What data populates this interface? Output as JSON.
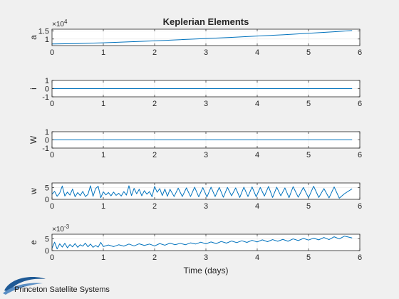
{
  "window": {
    "footer_text": "Princeton Satellite Systems"
  },
  "colors": {
    "background": "#f0f0f0",
    "axes_bg": "#ffffff",
    "line": "#0072bd",
    "grid": "#e6e6e6",
    "text": "#262626"
  },
  "chart_data": [
    {
      "type": "line",
      "title": "Keplerian Elements",
      "ylabel": "a",
      "xlabel": "",
      "exponent": "4",
      "xlim": [
        0,
        6
      ],
      "ylim": [
        0.6,
        1.6
      ],
      "xticks": [
        "0",
        "1",
        "2",
        "3",
        "4",
        "5",
        "6"
      ],
      "yticks": [
        {
          "value": 1,
          "label": "1"
        },
        {
          "value": 1.5,
          "label": "1.5"
        }
      ],
      "x": [
        0,
        0.5,
        1,
        1.5,
        2,
        2.5,
        3,
        3.5,
        4,
        4.5,
        5,
        5.5,
        5.85
      ],
      "y": [
        0.7,
        0.72,
        0.77,
        0.83,
        0.89,
        0.96,
        1.03,
        1.1,
        1.18,
        1.26,
        1.35,
        1.44,
        1.52
      ]
    },
    {
      "type": "line",
      "title": "",
      "ylabel": "i",
      "xlabel": "",
      "xlim": [
        0,
        6
      ],
      "ylim": [
        -1,
        1
      ],
      "xticks": [
        "0",
        "1",
        "2",
        "3",
        "4",
        "5",
        "6"
      ],
      "yticks": [
        {
          "value": -1,
          "label": "-1"
        },
        {
          "value": 0,
          "label": "0"
        },
        {
          "value": 1,
          "label": "1"
        }
      ],
      "x": [
        0,
        5.85
      ],
      "y": [
        0,
        0
      ]
    },
    {
      "type": "line",
      "title": "",
      "ylabel": "W",
      "xlabel": "",
      "xlim": [
        0,
        6
      ],
      "ylim": [
        -1,
        1
      ],
      "xticks": [
        "0",
        "1",
        "2",
        "3",
        "4",
        "5",
        "6"
      ],
      "yticks": [
        {
          "value": -1,
          "label": "-1"
        },
        {
          "value": 0,
          "label": "0"
        },
        {
          "value": 1,
          "label": "1"
        }
      ],
      "x": [
        0,
        5.85
      ],
      "y": [
        0,
        0
      ]
    },
    {
      "type": "line",
      "title": "",
      "ylabel": "w",
      "xlabel": "",
      "xlim": [
        0,
        6
      ],
      "ylim": [
        0,
        7
      ],
      "xticks": [
        "0",
        "1",
        "2",
        "3",
        "4",
        "5",
        "6"
      ],
      "yticks": [
        {
          "value": 0,
          "label": "0"
        },
        {
          "value": 5,
          "label": "5"
        }
      ],
      "x": [
        0,
        0.05,
        0.1,
        0.15,
        0.2,
        0.25,
        0.3,
        0.35,
        0.4,
        0.45,
        0.5,
        0.55,
        0.6,
        0.65,
        0.7,
        0.75,
        0.8,
        0.85,
        0.9,
        0.95,
        1.0,
        1.05,
        1.1,
        1.15,
        1.2,
        1.25,
        1.3,
        1.35,
        1.4,
        1.45,
        1.5,
        1.55,
        1.6,
        1.65,
        1.7,
        1.75,
        1.8,
        1.85,
        1.9,
        1.95,
        2.0,
        2.05,
        2.1,
        2.15,
        2.2,
        2.25,
        2.3,
        2.38,
        2.46,
        2.54,
        2.62,
        2.7,
        2.78,
        2.86,
        2.94,
        3.02,
        3.1,
        3.18,
        3.26,
        3.34,
        3.42,
        3.5,
        3.58,
        3.66,
        3.74,
        3.82,
        3.9,
        3.98,
        4.06,
        4.14,
        4.22,
        4.3,
        4.38,
        4.46,
        4.54,
        4.62,
        4.7,
        4.8,
        4.9,
        5.0,
        5.1,
        5.2,
        5.3,
        5.4,
        5.5,
        5.6,
        5.7,
        5.85
      ],
      "y": [
        2.2,
        3.4,
        1.3,
        2.7,
        5.7,
        1.4,
        3.1,
        1.8,
        4.4,
        1.1,
        2.9,
        1.6,
        3.4,
        1.2,
        2.1,
        5.8,
        1.3,
        4.6,
        5.6,
        0.7,
        3.2,
        1.9,
        2.9,
        1.5,
        3.1,
        1.7,
        2.6,
        1.4,
        3.3,
        1.8,
        5.8,
        1.6,
        4.7,
        2.4,
        4.3,
        1.5,
        3.7,
        2.2,
        3.3,
        1.1,
        5.5,
        3.0,
        4.6,
        1.6,
        4.4,
        1.3,
        4.3,
        1.2,
        4.8,
        1.2,
        4.9,
        1.2,
        5.2,
        1.1,
        5.0,
        1.0,
        5.2,
        1.2,
        5.1,
        0.9,
        5.1,
        1.5,
        4.9,
        0.8,
        5.2,
        1.2,
        5.3,
        1.1,
        5.1,
        1.4,
        5.5,
        0.8,
        5.2,
        1.5,
        4.9,
        0.7,
        5.4,
        0.9,
        5.1,
        0.7,
        5.6,
        0.8,
        4.6,
        0.6,
        5.3,
        0.5,
        2.4,
        4.5
      ]
    },
    {
      "type": "line",
      "title": "",
      "ylabel": "e",
      "xlabel": "Time (days)",
      "exponent": "-3",
      "xlim": [
        0,
        6
      ],
      "ylim": [
        0,
        7
      ],
      "xticks": [
        "0",
        "1",
        "2",
        "3",
        "4",
        "5",
        "6"
      ],
      "yticks": [
        {
          "value": 0,
          "label": "0"
        },
        {
          "value": 5,
          "label": "5"
        }
      ],
      "x": [
        0,
        0.05,
        0.1,
        0.15,
        0.2,
        0.25,
        0.3,
        0.35,
        0.4,
        0.45,
        0.5,
        0.55,
        0.6,
        0.65,
        0.7,
        0.75,
        0.8,
        0.85,
        0.9,
        0.95,
        1.0,
        1.1,
        1.2,
        1.3,
        1.4,
        1.5,
        1.6,
        1.7,
        1.8,
        1.9,
        2.0,
        2.1,
        2.2,
        2.3,
        2.4,
        2.5,
        2.6,
        2.7,
        2.8,
        2.9,
        3.0,
        3.1,
        3.2,
        3.3,
        3.4,
        3.5,
        3.6,
        3.7,
        3.8,
        3.9,
        4.0,
        4.1,
        4.2,
        4.3,
        4.4,
        4.5,
        4.6,
        4.7,
        4.8,
        4.9,
        5.0,
        5.1,
        5.2,
        5.3,
        5.4,
        5.5,
        5.6,
        5.7,
        5.85
      ],
      "y": [
        1.0,
        3.6,
        0.7,
        2.9,
        1.5,
        3.1,
        1.2,
        2.6,
        1.6,
        3.0,
        1.4,
        2.5,
        1.9,
        3.2,
        1.6,
        2.8,
        1.4,
        2.2,
        1.5,
        3.5,
        1.7,
        2.4,
        1.7,
        2.5,
        1.9,
        2.8,
        2.0,
        2.9,
        2.2,
        2.8,
        2.0,
        3.0,
        2.3,
        3.2,
        2.5,
        3.1,
        2.5,
        3.3,
        2.8,
        3.6,
        2.9,
        3.7,
        3.0,
        3.9,
        3.2,
        4.1,
        3.4,
        4.2,
        3.5,
        4.4,
        3.7,
        4.6,
        3.8,
        4.7,
        4.0,
        4.8,
        4.0,
        5.0,
        4.3,
        5.2,
        4.5,
        5.3,
        4.6,
        5.6,
        4.7,
        5.9,
        5.0,
        6.2,
        5.4
      ]
    }
  ]
}
